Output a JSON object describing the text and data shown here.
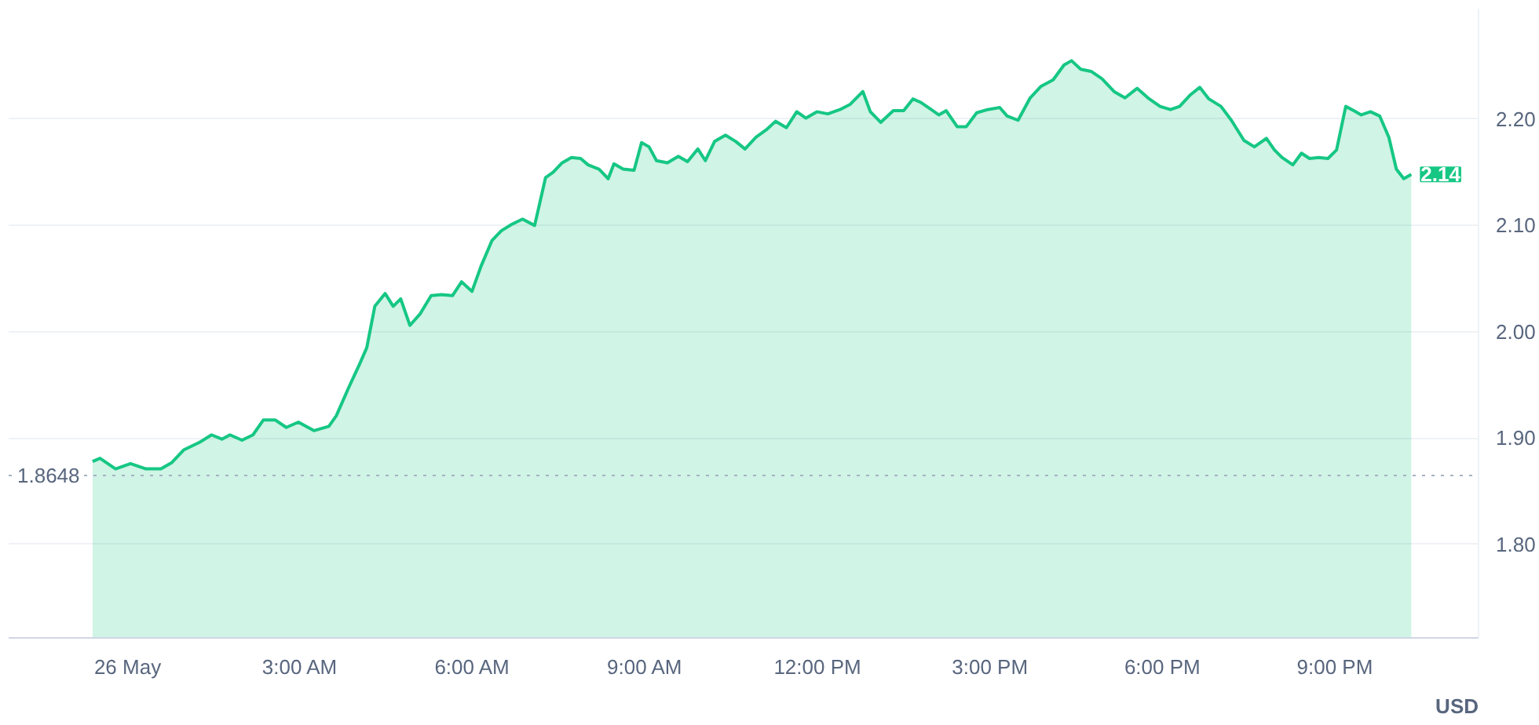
{
  "chart_data": {
    "type": "area",
    "x": [
      -0.61,
      -0.48,
      -0.21,
      0.05,
      0.32,
      0.58,
      0.77,
      0.98,
      1.25,
      1.46,
      1.64,
      1.78,
      1.99,
      2.18,
      2.36,
      2.57,
      2.76,
      2.97,
      3.24,
      3.5,
      3.63,
      3.85,
      4.03,
      4.16,
      4.3,
      4.48,
      4.62,
      4.75,
      4.91,
      5.09,
      5.28,
      5.46,
      5.65,
      5.81,
      5.99,
      6.15,
      6.34,
      6.5,
      6.68,
      6.87,
      7.08,
      7.27,
      7.4,
      7.56,
      7.72,
      7.88,
      8.01,
      8.2,
      8.36,
      8.46,
      8.62,
      8.81,
      8.94,
      9.07,
      9.2,
      9.39,
      9.58,
      9.74,
      9.92,
      10.05,
      10.21,
      10.4,
      10.58,
      10.74,
      10.93,
      11.11,
      11.27,
      11.46,
      11.64,
      11.8,
      11.99,
      12.18,
      12.39,
      12.57,
      12.79,
      12.92,
      13.1,
      13.32,
      13.5,
      13.66,
      13.79,
      13.98,
      14.11,
      14.24,
      14.43,
      14.59,
      14.77,
      14.96,
      15.17,
      15.3,
      15.49,
      15.7,
      15.89,
      16.1,
      16.29,
      16.42,
      16.58,
      16.76,
      16.95,
      17.16,
      17.35,
      17.56,
      17.75,
      17.96,
      18.14,
      18.3,
      18.49,
      18.65,
      18.81,
      19.02,
      19.2,
      19.42,
      19.6,
      19.81,
      19.95,
      20.08,
      20.27,
      20.42,
      20.56,
      20.72,
      20.88,
      21.03,
      21.19,
      21.33,
      21.46,
      21.62,
      21.78,
      21.94,
      22.07,
      22.2,
      22.33
    ],
    "series": [
      {
        "color": "#16c784",
        "values": [
          1.878,
          1.881,
          1.871,
          1.876,
          1.871,
          1.871,
          1.877,
          1.889,
          1.896,
          1.903,
          1.899,
          1.903,
          1.898,
          1.903,
          1.917,
          1.917,
          1.91,
          1.915,
          1.907,
          1.911,
          1.921,
          1.948,
          1.969,
          1.985,
          2.024,
          2.036,
          2.024,
          2.031,
          2.006,
          2.017,
          2.034,
          2.035,
          2.034,
          2.047,
          2.038,
          2.062,
          2.086,
          2.095,
          2.101,
          2.106,
          2.1,
          2.145,
          2.15,
          2.159,
          2.164,
          2.163,
          2.157,
          2.153,
          2.144,
          2.158,
          2.153,
          2.152,
          2.178,
          2.174,
          2.161,
          2.159,
          2.165,
          2.16,
          2.172,
          2.161,
          2.179,
          2.185,
          2.179,
          2.172,
          2.183,
          2.19,
          2.198,
          2.192,
          2.207,
          2.201,
          2.207,
          2.205,
          2.209,
          2.214,
          2.226,
          2.207,
          2.197,
          2.208,
          2.208,
          2.219,
          2.216,
          2.209,
          2.204,
          2.208,
          2.193,
          2.193,
          2.206,
          2.209,
          2.211,
          2.203,
          2.199,
          2.22,
          2.231,
          2.237,
          2.251,
          2.255,
          2.247,
          2.245,
          2.238,
          2.226,
          2.22,
          2.229,
          2.22,
          2.212,
          2.209,
          2.212,
          2.223,
          2.23,
          2.219,
          2.212,
          2.199,
          2.18,
          2.174,
          2.182,
          2.171,
          2.164,
          2.157,
          2.168,
          2.163,
          2.164,
          2.163,
          2.171,
          2.212,
          2.208,
          2.204,
          2.207,
          2.203,
          2.183,
          2.153,
          2.144,
          2.148
        ]
      }
    ],
    "xlim": [
      -2.07,
      23.5
    ],
    "ylim": [
      1.712,
      2.304
    ],
    "xticks": [
      {
        "value": 0,
        "label": "26 May"
      },
      {
        "value": 3,
        "label": "3:00 AM"
      },
      {
        "value": 6,
        "label": "6:00 AM"
      },
      {
        "value": 9,
        "label": "9:00 AM"
      },
      {
        "value": 12,
        "label": "12:00 PM"
      },
      {
        "value": 15,
        "label": "3:00 PM"
      },
      {
        "value": 18,
        "label": "6:00 PM"
      },
      {
        "value": 21,
        "label": "9:00 PM"
      }
    ],
    "yticks": [
      {
        "value": 1.8,
        "label": "1.80"
      },
      {
        "value": 1.9,
        "label": "1.90"
      },
      {
        "value": 2.0,
        "label": "2.00"
      },
      {
        "value": 2.1,
        "label": "2.10"
      },
      {
        "value": 2.2,
        "label": "2.20"
      }
    ],
    "ref_lines": [
      {
        "axis": "y",
        "value": 1.8648,
        "label": "1.8648",
        "color": "#a6b0c3",
        "line_style": "dotted"
      }
    ],
    "annotations": [
      {
        "text": "2.14",
        "x": 22.33,
        "y": 2.148
      },
      "USD"
    ],
    "grid": "y"
  }
}
